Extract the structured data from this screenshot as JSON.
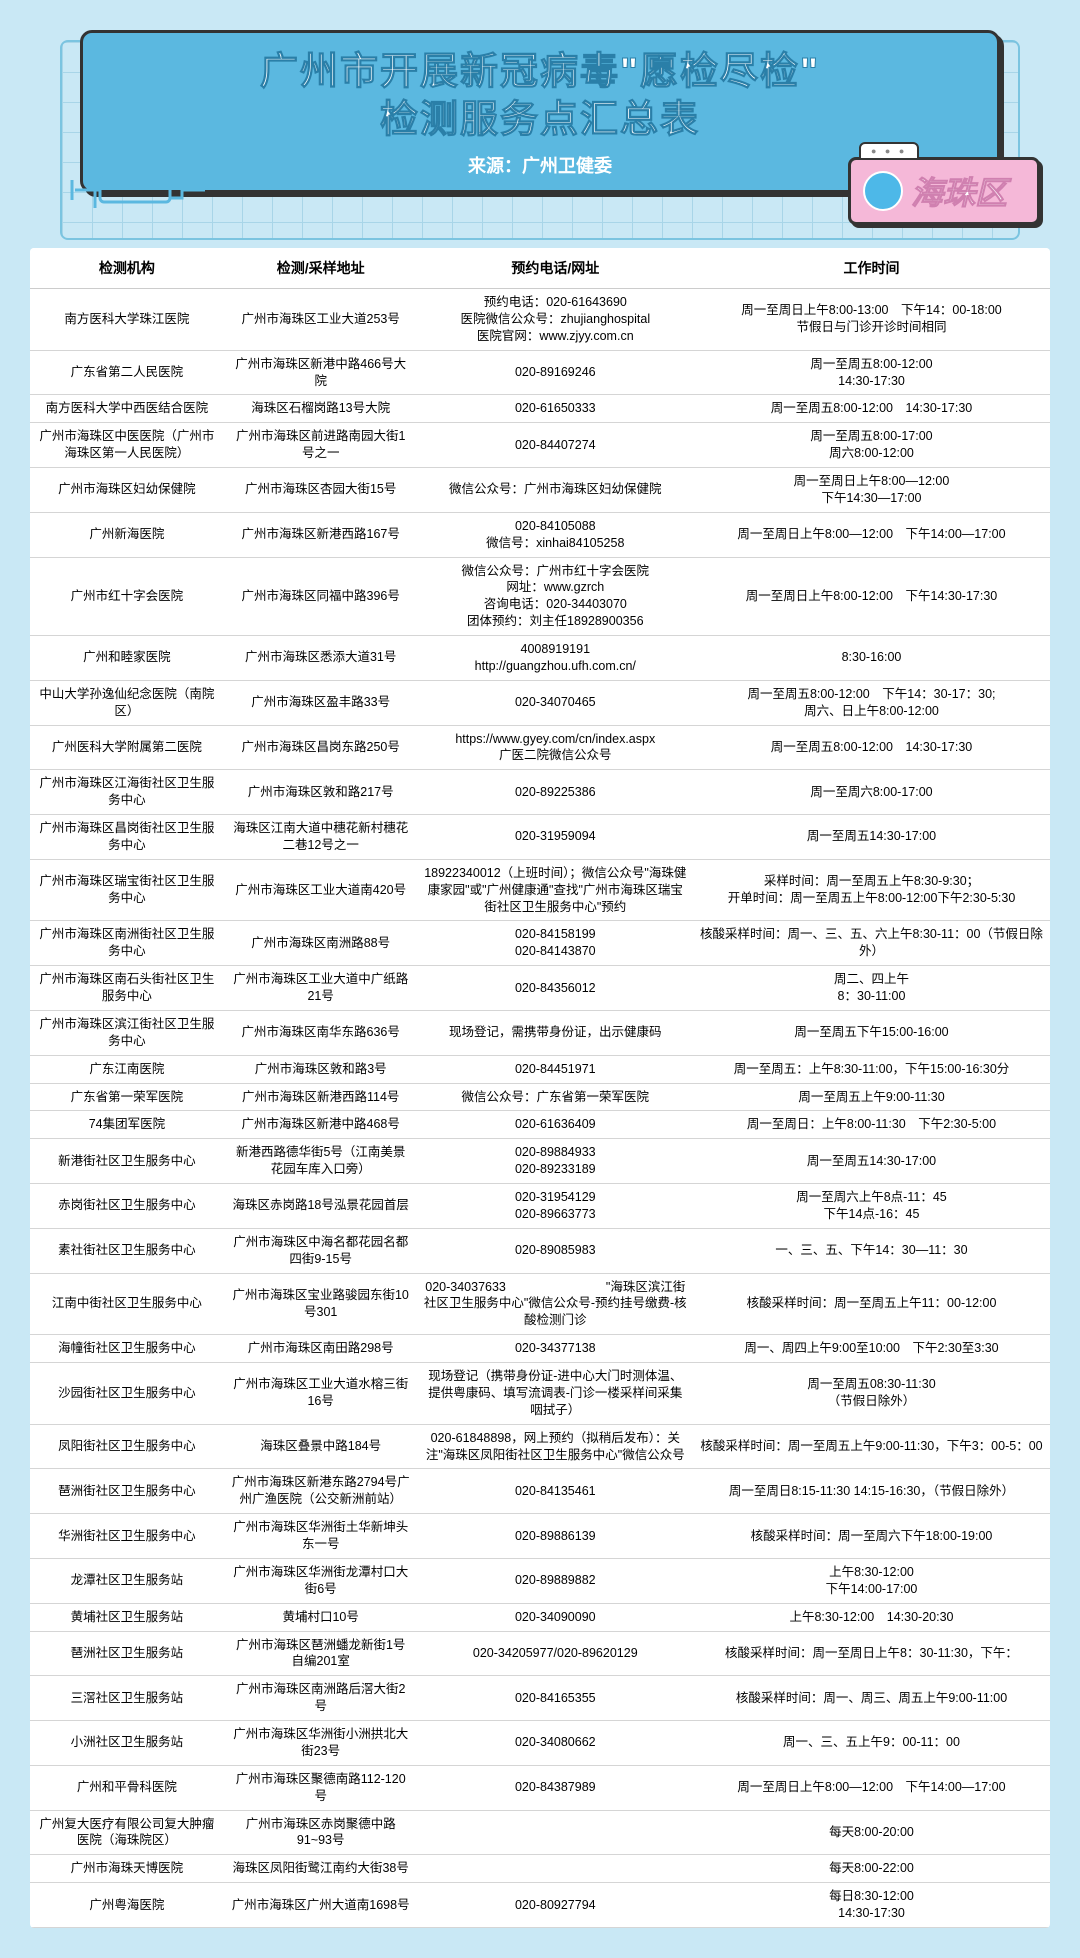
{
  "header": {
    "title_line1": "广州市开展新冠病毒\"愿检尽检\"",
    "title_line2": "检测服务点汇总表",
    "source": "来源：广州卫健委",
    "district": "海珠区"
  },
  "columns": [
    "检测机构",
    "检测/采样地址",
    "预约电话/网址",
    "工作时间"
  ],
  "rows": [
    [
      "南方医科大学珠江医院",
      "广州市海珠区工业大道253号",
      "预约电话：020-61643690\n医院微信公众号：zhujianghospital\n医院官网：www.zjyy.com.cn",
      "周一至周日上午8:00-13:00　下午14：00-18:00\n节假日与门诊开诊时间相同"
    ],
    [
      "广东省第二人民医院",
      "广州市海珠区新港中路466号大院",
      "020-89169246",
      "周一至周五8:00-12:00\n14:30-17:30"
    ],
    [
      "南方医科大学中西医结合医院",
      "海珠区石榴岗路13号大院",
      "020-61650333",
      "周一至周五8:00-12:00　14:30-17:30"
    ],
    [
      "广州市海珠区中医医院（广州市海珠区第一人民医院）",
      "广州市海珠区前进路南园大街1号之一",
      "020-84407274",
      "周一至周五8:00-17:00\n周六8:00-12:00"
    ],
    [
      "广州市海珠区妇幼保健院",
      "广州市海珠区杏园大街15号",
      "微信公众号：广州市海珠区妇幼保健院",
      "周一至周日上午8:00—12:00\n下午14:30—17:00"
    ],
    [
      "广州新海医院",
      "广州市海珠区新港西路167号",
      "020-84105088\n微信号：xinhai84105258",
      "周一至周日上午8:00—12:00　下午14:00—17:00"
    ],
    [
      "广州市红十字会医院",
      "广州市海珠区同福中路396号",
      "微信公众号：广州市红十字会医院\n网址：www.gzrch\n咨询电话：020-34403070\n团体预约：刘主任18928900356",
      "周一至周日上午8:00-12:00　下午14:30-17:30"
    ],
    [
      "广州和睦家医院",
      "广州市海珠区悉添大道31号",
      "4008919191\nhttp://guangzhou.ufh.com.cn/",
      "8:30-16:00"
    ],
    [
      "中山大学孙逸仙纪念医院（南院区）",
      "广州市海珠区盈丰路33号",
      "020-34070465",
      "周一至周五8:00-12:00　下午14：30-17：30;\n周六、日上午8:00-12:00"
    ],
    [
      "广州医科大学附属第二医院",
      "广州市海珠区昌岗东路250号",
      "https://www.gyey.com/cn/index.aspx\n广医二院微信公众号",
      "周一至周五8:00-12:00　14:30-17:30"
    ],
    [
      "广州市海珠区江海街社区卫生服务中心",
      "广州市海珠区敦和路217号",
      "020-89225386",
      "周一至周六8:00-17:00"
    ],
    [
      "广州市海珠区昌岗街社区卫生服务中心",
      "海珠区江南大道中穗花新村穗花二巷12号之一",
      "020-31959094",
      "周一至周五14:30-17:00"
    ],
    [
      "广州市海珠区瑞宝街社区卫生服务中心",
      "广州市海珠区工业大道南420号",
      "18922340012（上班时间）；微信公众号\"海珠健康家园\"或\"广州健康通\"查找\"广州市海珠区瑞宝街社区卫生服务中心\"预约",
      "采样时间：周一至周五上午8:30-9:30；\n开单时间：周一至周五上午8:00-12:00下午2:30-5:30"
    ],
    [
      "广州市海珠区南洲街社区卫生服务中心",
      "广州市海珠区南洲路88号",
      "020-84158199\n020-84143870",
      "核酸采样时间：周一、三、五、六上午8:30-11：00（节假日除外）"
    ],
    [
      "广州市海珠区南石头街社区卫生服务中心",
      "广州市海珠区工业大道中广纸路21号",
      "020-84356012",
      "周二、四上午\n8：30-11:00"
    ],
    [
      "广州市海珠区滨江街社区卫生服务中心",
      "广州市海珠区南华东路636号",
      "现场登记，需携带身份证，出示健康码",
      "周一至周五下午15:00-16:00"
    ],
    [
      "广东江南医院",
      "广州市海珠区敦和路3号",
      "020-84451971",
      "周一至周五：上午8:30-11:00，下午15:00-16:30分"
    ],
    [
      "广东省第一荣军医院",
      "广州市海珠区新港西路114号",
      "微信公众号：广东省第一荣军医院",
      "周一至周五上午9:00-11:30"
    ],
    [
      "74集团军医院",
      "广州市海珠区新港中路468号",
      "020-61636409",
      "周一至周日：上午8:00-11:30　下午2:30-5:00"
    ],
    [
      "新港街社区卫生服务中心",
      "新港西路德华街5号（江南美景花园车库入口旁）",
      "020-89884933\n020-89233189",
      "周一至周五14:30-17:00"
    ],
    [
      "赤岗街社区卫生服务中心",
      "海珠区赤岗路18号泓景花园首层",
      "020-31954129\n020-89663773",
      "周一至周六上午8点-11：45\n下午14点-16：45"
    ],
    [
      "素社街社区卫生服务中心",
      "广州市海珠区中海名都花园名都四街9-15号",
      "020-89085983",
      "一、三、五、下午14：30—11：30"
    ],
    [
      "江南中街社区卫生服务中心",
      "广州市海珠区宝业路骏园东街10号301",
      "020-34037633　　　　　　　　\"海珠区滨江街社区卫生服务中心\"微信公众号-预约挂号缴费-核酸检测门诊",
      "核酸采样时间：周一至周五上午11：00-12:00"
    ],
    [
      "海幢街社区卫生服务中心",
      "广州市海珠区南田路298号",
      "020-34377138",
      "周一、周四上午9:00至10:00　下午2:30至3:30"
    ],
    [
      "沙园街社区卫生服务中心",
      "广州市海珠区工业大道水榕三街16号",
      "现场登记（携带身份证-进中心大门时测体温、提供粤康码、填写流调表-门诊一楼采样间采集咽拭子）",
      "周一至周五08:30-11:30\n（节假日除外）"
    ],
    [
      "凤阳街社区卫生服务中心",
      "海珠区叠景中路184号",
      "020-61848898，网上预约（拟稍后发布）：关注\"海珠区凤阳街社区卫生服务中心\"微信公众号",
      "核酸采样时间：周一至周五上午9:00-11:30，下午3：00-5：00"
    ],
    [
      "琶洲街社区卫生服务中心",
      "广州市海珠区新港东路2794号广州广渔医院（公交新洲前站）",
      "020-84135461",
      "周一至周日8:15-11:30 14:15-16:30，（节假日除外）"
    ],
    [
      "华洲街社区卫生服务中心",
      "广州市海珠区华洲街土华新坤头东一号",
      "020-89886139",
      "核酸采样时间：周一至周六下午18:00-19:00"
    ],
    [
      "龙潭社区卫生服务站",
      "广州市海珠区华洲街龙潭村口大街6号",
      "020-89889882",
      "上午8:30-12:00\n下午14:00-17:00"
    ],
    [
      "黄埔社区卫生服务站",
      "黄埔村口10号",
      "020-34090090",
      "上午8:30-12:00　14:30-20:30"
    ],
    [
      "琶洲社区卫生服务站",
      "广州市海珠区琶洲蟠龙新街1号自编201室",
      "020-34205977/020-89620129",
      "核酸采样时间：周一至周日上午8：30-11:30，下午："
    ],
    [
      "三滘社区卫生服务站",
      "广州市海珠区南洲路后滘大街2号",
      "020-84165355",
      "核酸采样时间：周一、周三、周五上午9:00-11:00"
    ],
    [
      "小洲社区卫生服务站",
      "广州市海珠区华洲街小洲拱北大街23号",
      "020-34080662",
      "周一、三、五上午9：00-11：00"
    ],
    [
      "广州和平骨科医院",
      "广州市海珠区聚德南路112-120号",
      "020-84387989",
      "周一至周日上午8:00—12:00　下午14:00—17:00"
    ],
    [
      "广州复大医疗有限公司复大肿瘤医院（海珠院区）",
      "广州市海珠区赤岗聚德中路91~93号",
      "",
      "每天8:00-20:00"
    ],
    [
      "广州市海珠天博医院",
      "海珠区凤阳街鹭江南约大街38号",
      "",
      "每天8:00-22:00"
    ],
    [
      "广州粤海医院",
      "广州市海珠区广州大道南1698号",
      "020-80927794",
      "每日8:30-12:00\n14:30-17:30"
    ]
  ]
}
